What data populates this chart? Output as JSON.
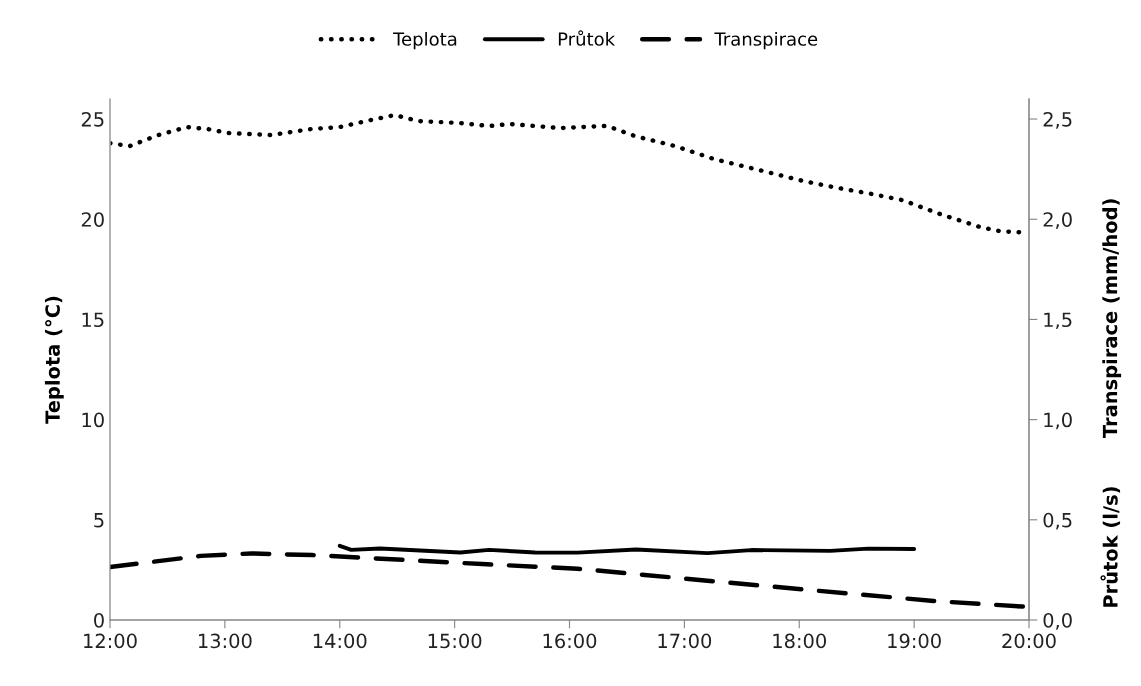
{
  "chart_data": {
    "type": "line",
    "ylabel": "Teplota (°C)",
    "y2label": [
      "Transpirace (mm/hod)",
      "Průtok (l/s)"
    ],
    "xlim": [
      12,
      20
    ],
    "xticks": [
      {
        "value": 12,
        "label": "12:00"
      },
      {
        "value": 13,
        "label": "13:00"
      },
      {
        "value": 14,
        "label": "14:00"
      },
      {
        "value": 15,
        "label": "15:00"
      },
      {
        "value": 16,
        "label": "16:00"
      },
      {
        "value": 17,
        "label": "17:00"
      },
      {
        "value": 18,
        "label": "18:00"
      },
      {
        "value": 19,
        "label": "19:00"
      },
      {
        "value": 20,
        "label": "20:00"
      }
    ],
    "ylim": [
      0,
      26
    ],
    "yticks": [
      0,
      5,
      10,
      15,
      20,
      25
    ],
    "y2lim": [
      0,
      2.6
    ],
    "y2ticks": [
      {
        "value": 0,
        "label": "0,0"
      },
      {
        "value": 0.5,
        "label": "0,5"
      },
      {
        "value": 1,
        "label": "1,0"
      },
      {
        "value": 1.5,
        "label": "1,5"
      },
      {
        "value": 2,
        "label": "2,0"
      },
      {
        "value": 2.5,
        "label": "2,5"
      }
    ],
    "grid": false,
    "legend": "top",
    "series": [
      {
        "name": "Teplota",
        "color": "#000000",
        "line_style": "dotted",
        "x": [
          12.0,
          12.17,
          12.42,
          12.67,
          12.85,
          13.03,
          13.4,
          13.75,
          14.0,
          14.27,
          14.48,
          14.68,
          15.05,
          15.3,
          15.48,
          15.92,
          16.28,
          16.33,
          16.57,
          16.92,
          17.26,
          17.69,
          18.04,
          18.3,
          18.64,
          18.9,
          19.23,
          19.58,
          19.75,
          19.92
        ],
        "values": [
          23.8,
          23.65,
          24.2,
          24.6,
          24.5,
          24.3,
          24.2,
          24.5,
          24.6,
          24.95,
          25.2,
          24.9,
          24.8,
          24.65,
          24.75,
          24.55,
          24.65,
          24.65,
          24.15,
          23.65,
          23.0,
          22.4,
          21.9,
          21.6,
          21.25,
          20.95,
          20.25,
          19.6,
          19.4,
          19.35
        ]
      },
      {
        "name": "Průtok",
        "color": "#000000",
        "line_style": "solid",
        "axis": "y2",
        "x": [
          14.0,
          14.1,
          14.35,
          15.05,
          15.3,
          15.7,
          16.07,
          16.58,
          17.2,
          17.58,
          18.27,
          18.6,
          19.0
        ],
        "values": [
          0.37,
          0.35,
          0.357,
          0.337,
          0.35,
          0.337,
          0.336,
          0.352,
          0.334,
          0.349,
          0.345,
          0.356,
          0.354
        ]
      },
      {
        "name": "Transpirace",
        "color": "#000000",
        "line_style": "dashed",
        "axis": "y2",
        "x": [
          12.0,
          12.79,
          13.23,
          13.76,
          14.26,
          15.24,
          16.07,
          17.2,
          18.2,
          19.17,
          20.0
        ],
        "values": [
          0.264,
          0.32,
          0.332,
          0.324,
          0.309,
          0.279,
          0.256,
          0.196,
          0.144,
          0.095,
          0.065
        ]
      }
    ]
  }
}
